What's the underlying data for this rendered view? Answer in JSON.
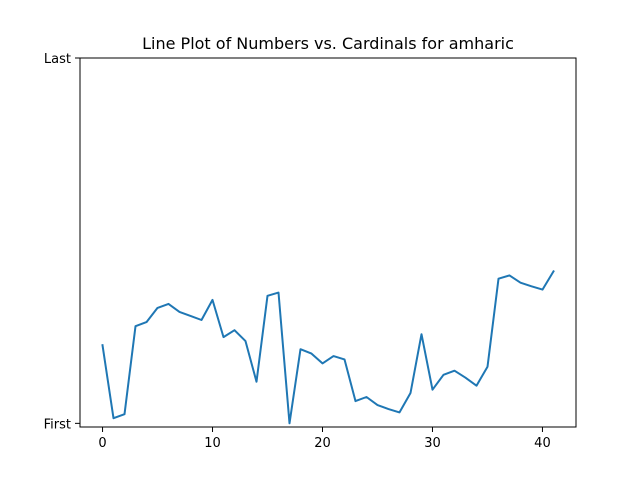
{
  "chart_data": {
    "type": "line",
    "title": "Line Plot of Numbers vs. Cardinals for amharic",
    "xlabel": "",
    "ylabel": "",
    "xlim": [
      -2.05,
      43.05
    ],
    "ylim": [
      -0.01,
      1.0
    ],
    "x_ticks": [
      0,
      10,
      20,
      30,
      40
    ],
    "y_ticks": [
      {
        "value": 0.0,
        "label": "First"
      },
      {
        "value": 1.0,
        "label": "Last"
      }
    ],
    "grid": false,
    "legend": "none",
    "colors": {
      "line": "#1f77b4"
    },
    "x": [
      0,
      1,
      2,
      3,
      4,
      5,
      6,
      7,
      8,
      9,
      10,
      11,
      12,
      13,
      14,
      15,
      16,
      17,
      18,
      19,
      20,
      21,
      22,
      23,
      24,
      25,
      26,
      27,
      28,
      29,
      30,
      31,
      32,
      33,
      34,
      35,
      36,
      37,
      38,
      39,
      40,
      41
    ],
    "series": [
      {
        "values": [
          0.214,
          0.014,
          0.025,
          0.266,
          0.277,
          0.316,
          0.327,
          0.305,
          0.294,
          0.283,
          0.338,
          0.236,
          0.255,
          0.225,
          0.114,
          0.349,
          0.358,
          0.0,
          0.203,
          0.191,
          0.164,
          0.184,
          0.175,
          0.061,
          0.072,
          0.05,
          0.039,
          0.03,
          0.083,
          0.244,
          0.092,
          0.133,
          0.144,
          0.125,
          0.103,
          0.155,
          0.396,
          0.405,
          0.385,
          0.375,
          0.366,
          0.416
        ]
      }
    ]
  }
}
